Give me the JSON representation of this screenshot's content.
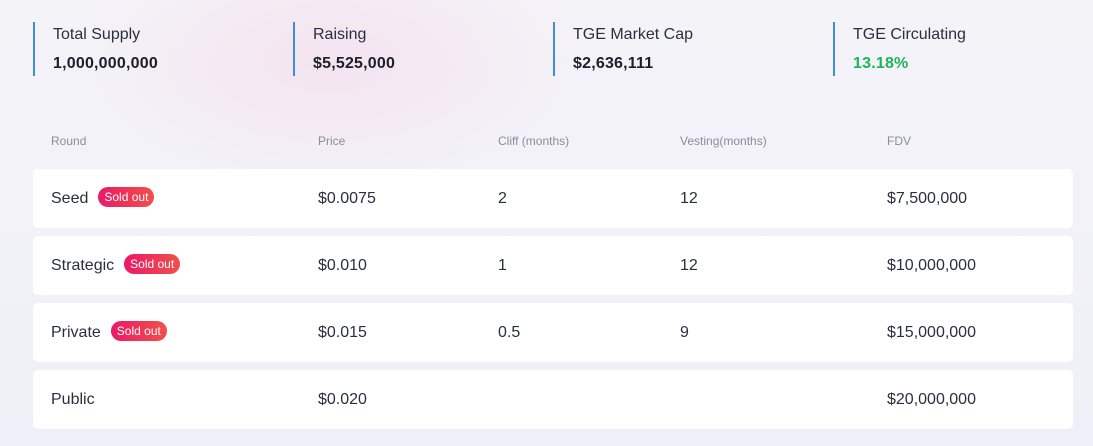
{
  "stats": [
    {
      "label": "Total Supply",
      "value": "1,000,000,000"
    },
    {
      "label": "Raising",
      "value": "$5,525,000"
    },
    {
      "label": "TGE Market Cap",
      "value": "$2,636,111"
    },
    {
      "label": "TGE Circulating",
      "value": "13.18%",
      "color": "#1db45a"
    }
  ],
  "colors": {
    "accent_line": "#3c8ed8",
    "badge_start": "#ea1a66",
    "badge_end": "#f0504a"
  },
  "table": {
    "headers": [
      "Round",
      "Price",
      "Cliff (months)",
      "Vesting(months)",
      "FDV"
    ],
    "rows": [
      {
        "round": "Seed",
        "badge": "Sold out",
        "price": "$0.0075",
        "cliff": "2",
        "vesting": "12",
        "fdv": "$7,500,000"
      },
      {
        "round": "Strategic",
        "badge": "Sold out",
        "price": "$0.010",
        "cliff": "1",
        "vesting": "12",
        "fdv": "$10,000,000"
      },
      {
        "round": "Private",
        "badge": "Sold out",
        "price": "$0.015",
        "cliff": "0.5",
        "vesting": "9",
        "fdv": "$15,000,000"
      },
      {
        "round": "Public",
        "badge": "",
        "price": "$0.020",
        "cliff": "",
        "vesting": "",
        "fdv": "$20,000,000"
      }
    ]
  }
}
